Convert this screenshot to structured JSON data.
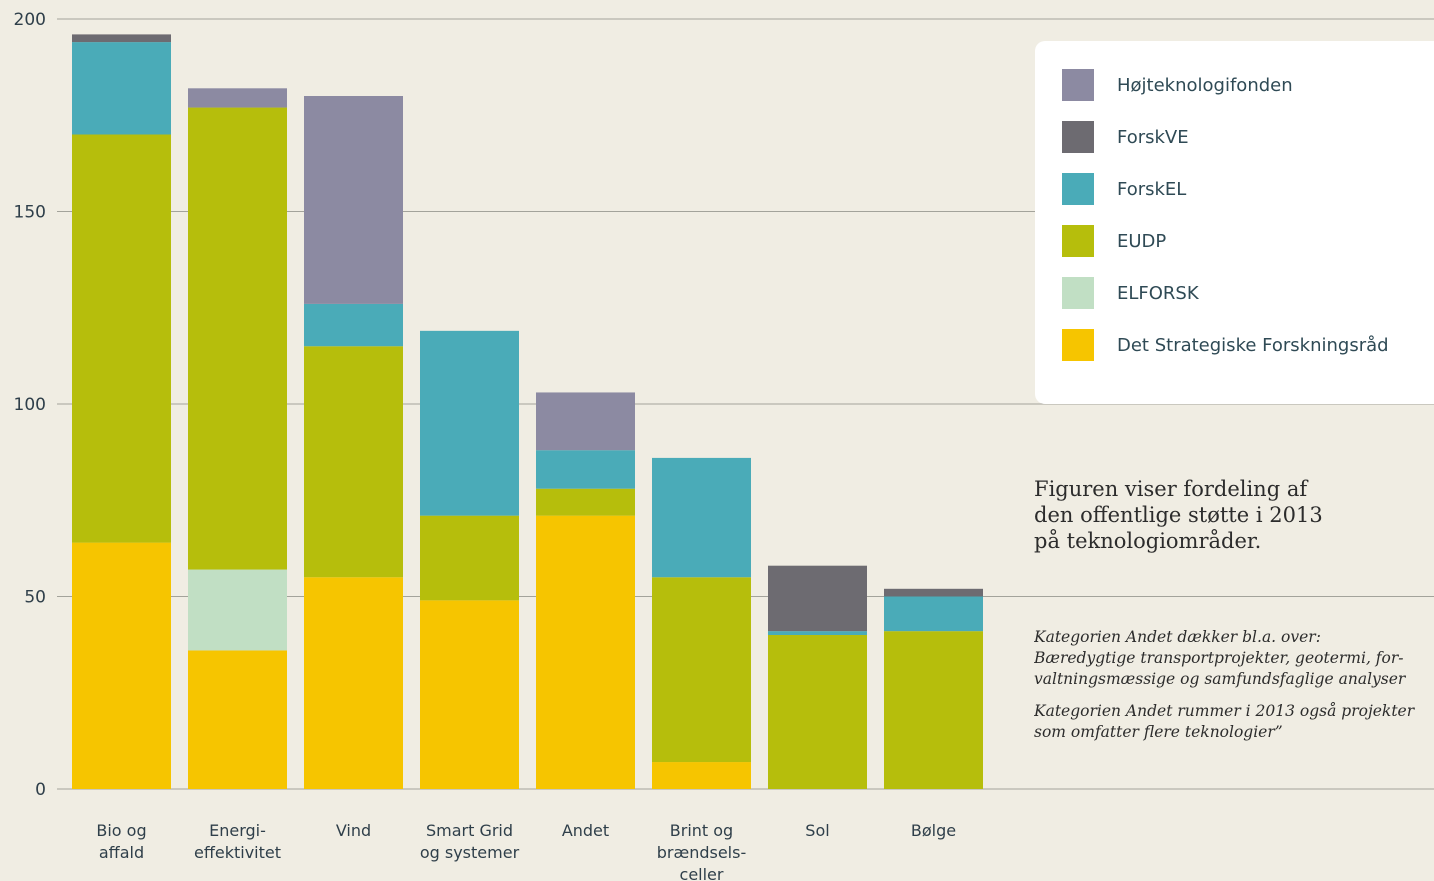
{
  "chart_data": {
    "type": "bar",
    "stacked": true,
    "title": "",
    "xlabel": "",
    "ylabel": "",
    "ylim": [
      0,
      200
    ],
    "yticks": [
      0,
      50,
      100,
      150,
      200
    ],
    "grid": true,
    "legend_position": "right",
    "categories": [
      [
        "Bio og",
        "affald"
      ],
      [
        "Energi-",
        "effektivitet"
      ],
      [
        "Vind"
      ],
      [
        "Smart Grid",
        "og systemer"
      ],
      [
        "Andet"
      ],
      [
        "Brint og",
        "brændsels-",
        "celler"
      ],
      [
        "Sol"
      ],
      [
        "Bølge"
      ]
    ],
    "series": [
      {
        "name": "Det Strategiske Forskningsråd",
        "color": "#f6c500",
        "values": [
          64,
          36,
          55,
          49,
          71,
          7,
          0,
          0
        ]
      },
      {
        "name": "ELFORSK",
        "color": "#c1dfc4",
        "values": [
          0,
          21,
          0,
          0,
          0,
          0,
          0,
          0
        ]
      },
      {
        "name": "EUDP",
        "color": "#b6be0c",
        "values": [
          106,
          120,
          60,
          22,
          7,
          48,
          40,
          41
        ]
      },
      {
        "name": "ForskEL",
        "color": "#4aabb8",
        "values": [
          24,
          0,
          11,
          48,
          10,
          31,
          1,
          9
        ]
      },
      {
        "name": "ForskVE",
        "color": "#6d6b71",
        "values": [
          2,
          0,
          0,
          0,
          0,
          0,
          17,
          2
        ]
      },
      {
        "name": "Højteknologifonden",
        "color": "#8c8aa2",
        "values": [
          0,
          5,
          54,
          0,
          15,
          0,
          0,
          0
        ]
      }
    ],
    "legend_order": [
      "Højteknologifonden",
      "ForskVE",
      "ForskEL",
      "EUDP",
      "ELFORSK",
      "Det Strategiske Forskningsråd"
    ]
  },
  "caption": {
    "lines": [
      "Figuren viser fordeling af",
      "den offentlige støtte i 2013",
      "på teknologiområder."
    ]
  },
  "note": {
    "paragraph1": [
      "Kategorien Andet dækker bl.a. over:",
      "Bæredygtige transportprojekter, geotermi, for-",
      "valtningsmæssige og samfundsfaglige analyser"
    ],
    "paragraph2": [
      "Kategorien Andet rummer i 2013 også projekter",
      "som omfatter flere teknologier”"
    ]
  }
}
